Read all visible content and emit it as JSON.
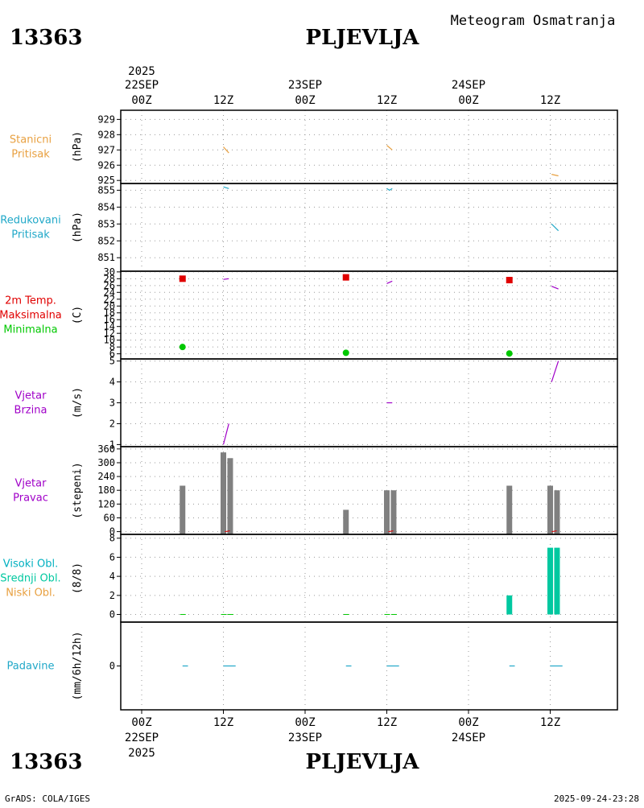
{
  "header": {
    "station_id": "13363",
    "station_name": "PLJEVLJA",
    "subtitle": "Meteogram Osmatranja"
  },
  "footer": {
    "station_id": "13363",
    "station_name": "PLJEVLJA",
    "credit": "GrADS: COLA/IGES",
    "timestamp": "2025-09-24-23:28"
  },
  "time_axis": {
    "top_year": "2025",
    "bottom_year": "2025",
    "ticks": [
      {
        "hour": 0,
        "hour_label": "00Z",
        "date_label": "22SEP"
      },
      {
        "hour": 12,
        "hour_label": "12Z",
        "date_label": ""
      },
      {
        "hour": 24,
        "hour_label": "00Z",
        "date_label": "23SEP"
      },
      {
        "hour": 36,
        "hour_label": "12Z",
        "date_label": ""
      },
      {
        "hour": 48,
        "hour_label": "00Z",
        "date_label": "24SEP"
      },
      {
        "hour": 60,
        "hour_label": "12Z",
        "date_label": ""
      }
    ]
  },
  "colors": {
    "orange": "#e8a040",
    "cyan": "#20a8c8",
    "red": "#e00000",
    "green": "#00c800",
    "purple": "#a000c8",
    "gray": "#808080",
    "teal": "#00c8a0",
    "cloud_cyan": "#00b0c0"
  },
  "chart_data": [
    {
      "type": "line",
      "labels": [
        "Stanicni",
        "Pritisak"
      ],
      "label_colors": [
        "orange",
        "orange"
      ],
      "unit": "(hPa)",
      "ylim": [
        924.8,
        929.6
      ],
      "yticks": [
        925,
        926,
        927,
        928,
        929
      ],
      "grid": true,
      "series": [
        {
          "color": "orange",
          "segments": [
            [
              [
                12.0,
                927.2
              ],
              [
                12.8,
                926.8
              ]
            ],
            [
              [
                36.0,
                927.3
              ],
              [
                36.8,
                927.0
              ]
            ],
            [
              [
                60.2,
                925.4
              ],
              [
                61.2,
                925.3
              ]
            ]
          ]
        }
      ]
    },
    {
      "type": "line",
      "labels": [
        "Redukovani",
        "Pritisak"
      ],
      "label_colors": [
        "cyan",
        "cyan"
      ],
      "unit": "(hPa)",
      "ylim": [
        850.2,
        855.4
      ],
      "yticks": [
        851,
        852,
        853,
        854,
        855
      ],
      "grid": true,
      "series": [
        {
          "color": "cyan",
          "segments": [
            [
              [
                12.0,
                855.2
              ],
              [
                12.8,
                855.1
              ]
            ],
            [
              [
                36.0,
                855.1
              ],
              [
                36.4,
                855.0
              ],
              [
                36.8,
                855.1
              ]
            ],
            [
              [
                60.2,
                853.0
              ],
              [
                61.2,
                852.6
              ]
            ]
          ]
        }
      ]
    },
    {
      "type": "scatter",
      "labels": [
        "2m Temp.",
        "Maksimalna",
        "Minimalna"
      ],
      "label_colors": [
        "red",
        "red",
        "green"
      ],
      "unit": "(C)",
      "ylim": [
        4.5,
        30.2
      ],
      "yticks": [
        6,
        8,
        10,
        12,
        14,
        16,
        18,
        20,
        22,
        24,
        26,
        28,
        30
      ],
      "ytick_labels": [
        "6",
        "8",
        "10",
        "12",
        "14",
        "16",
        "18",
        "20",
        "22",
        "24",
        "26",
        "28",
        "30"
      ],
      "grid": true,
      "series": [
        {
          "name": "Maksimalna",
          "color": "red",
          "marker": "square",
          "points": [
            [
              6,
              28.0
            ],
            [
              30,
              28.4
            ],
            [
              54,
              27.6
            ]
          ]
        },
        {
          "name": "Minimalna",
          "color": "green",
          "marker": "circle",
          "points": [
            [
              6,
              8.0
            ],
            [
              30,
              6.3
            ],
            [
              54,
              6.1
            ]
          ]
        },
        {
          "name": "2m Temp.",
          "color": "purple",
          "marker": "line",
          "segments": [
            [
              [
                12.0,
                27.8
              ],
              [
                12.8,
                28.0
              ]
            ],
            [
              [
                36.0,
                26.6
              ],
              [
                36.8,
                27.3
              ]
            ],
            [
              [
                60.2,
                25.8
              ],
              [
                61.2,
                25.0
              ]
            ]
          ]
        }
      ]
    },
    {
      "type": "line",
      "labels": [
        "Vjetar",
        "Brzina"
      ],
      "label_colors": [
        "purple",
        "purple"
      ],
      "unit": "(m/s)",
      "ylim": [
        0.9,
        5.1
      ],
      "yticks": [
        1,
        2,
        3,
        4,
        5
      ],
      "grid": true,
      "series": [
        {
          "color": "purple",
          "segments": [
            [
              [
                12.0,
                1.0
              ],
              [
                12.8,
                2.0
              ]
            ],
            [
              [
                36.0,
                3.0
              ],
              [
                36.8,
                3.0
              ]
            ],
            [
              [
                60.2,
                4.0
              ],
              [
                61.2,
                5.0
              ]
            ]
          ]
        }
      ]
    },
    {
      "type": "bar",
      "labels": [
        "Vjetar",
        "Pravac"
      ],
      "label_colors": [
        "purple",
        "purple"
      ],
      "unit": "(stepeni)",
      "ylim": [
        -12,
        370
      ],
      "yticks": [
        0,
        60,
        120,
        180,
        240,
        300,
        360
      ],
      "grid": true,
      "bar_color": "gray",
      "bars": [
        {
          "x": 6,
          "value": 200
        },
        {
          "x": 12,
          "value": 345
        },
        {
          "x": 13,
          "value": 320
        },
        {
          "x": 30,
          "value": 95
        },
        {
          "x": 36,
          "value": 180
        },
        {
          "x": 37,
          "value": 180
        },
        {
          "x": 54,
          "value": 200
        },
        {
          "x": 60,
          "value": 200
        },
        {
          "x": 61,
          "value": 180
        }
      ]
    },
    {
      "type": "bar",
      "labels": [
        "Visoki Obl.",
        "Srednji Obl.",
        "Niski Obl."
      ],
      "label_colors": [
        "cloud_cyan",
        "teal",
        "orange"
      ],
      "unit": "(8/8)",
      "ylim": [
        -0.8,
        8.4
      ],
      "yticks": [
        0,
        2,
        4,
        6,
        8
      ],
      "grid": true,
      "bar_color": "teal",
      "bars": [
        {
          "x": 6,
          "value": 0
        },
        {
          "x": 12,
          "value": 0
        },
        {
          "x": 13,
          "value": 0
        },
        {
          "x": 30,
          "value": 0
        },
        {
          "x": 36,
          "value": 0
        },
        {
          "x": 37,
          "value": 0
        },
        {
          "x": 54,
          "value": 2
        },
        {
          "x": 60,
          "value": 7
        },
        {
          "x": 61,
          "value": 7
        }
      ]
    },
    {
      "type": "line",
      "labels": [
        "Padavine"
      ],
      "label_colors": [
        "cyan"
      ],
      "unit": "(mm/6h/12h)",
      "ylim": [
        -5,
        5
      ],
      "yticks": [
        0
      ],
      "grid": false,
      "series": [
        {
          "color": "cyan",
          "segments": [
            [
              [
                6.0,
                0
              ],
              [
                6.8,
                0
              ]
            ],
            [
              [
                12.0,
                0
              ],
              [
                13.8,
                0
              ]
            ],
            [
              [
                30.0,
                0
              ],
              [
                30.8,
                0
              ]
            ],
            [
              [
                36.0,
                0
              ],
              [
                37.8,
                0
              ]
            ],
            [
              [
                54.0,
                0
              ],
              [
                54.8,
                0
              ]
            ],
            [
              [
                60.0,
                0
              ],
              [
                61.8,
                0
              ]
            ]
          ]
        }
      ]
    }
  ]
}
